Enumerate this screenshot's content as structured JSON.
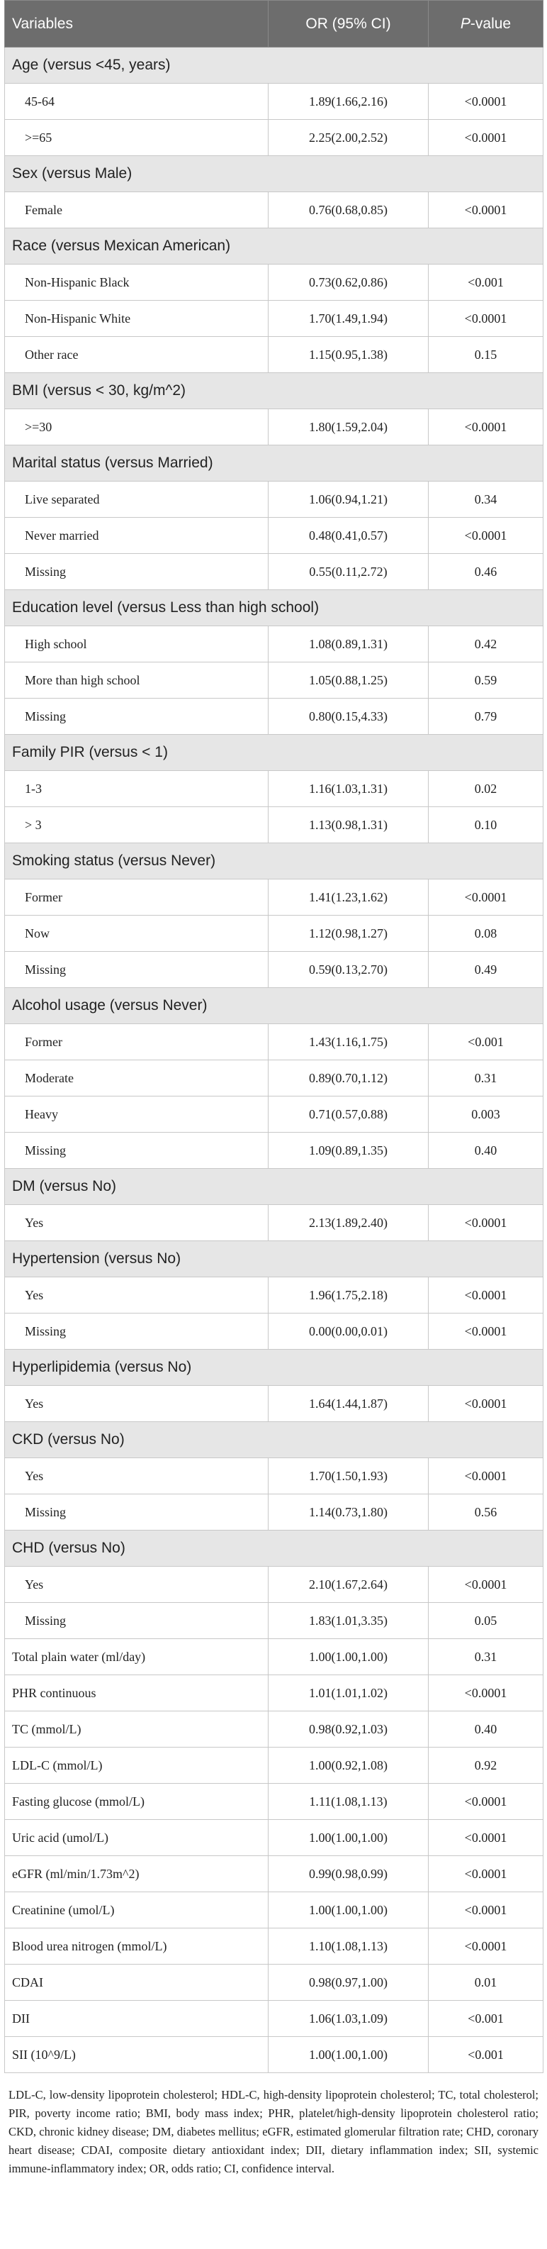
{
  "header": {
    "col_variables": "Variables",
    "col_or": "OR (95% CI)",
    "col_p_italic": "P",
    "col_p_rest": "-value"
  },
  "groups": [
    {
      "title": "Age (versus <45, years)",
      "rows": [
        {
          "label": "45-64",
          "or": "1.89(1.66,2.16)",
          "p": "<0.0001"
        },
        {
          "label": ">=65",
          "or": "2.25(2.00,2.52)",
          "p": "<0.0001"
        }
      ]
    },
    {
      "title": "Sex (versus Male)",
      "rows": [
        {
          "label": "Female",
          "or": "0.76(0.68,0.85)",
          "p": "<0.0001"
        }
      ]
    },
    {
      "title": "Race (versus Mexican American)",
      "rows": [
        {
          "label": "Non-Hispanic Black",
          "or": "0.73(0.62,0.86)",
          "p": "<0.001"
        },
        {
          "label": "Non-Hispanic White",
          "or": "1.70(1.49,1.94)",
          "p": "<0.0001"
        },
        {
          "label": "Other race",
          "or": "1.15(0.95,1.38)",
          "p": "0.15"
        }
      ]
    },
    {
      "title": "BMI (versus < 30, kg/m^2)",
      "rows": [
        {
          "label": ">=30",
          "or": "1.80(1.59,2.04)",
          "p": "<0.0001"
        }
      ]
    },
    {
      "title": "Marital status (versus Married)",
      "rows": [
        {
          "label": "Live separated",
          "or": "1.06(0.94,1.21)",
          "p": "0.34"
        },
        {
          "label": "Never married",
          "or": "0.48(0.41,0.57)",
          "p": "<0.0001"
        },
        {
          "label": "Missing",
          "or": "0.55(0.11,2.72)",
          "p": "0.46"
        }
      ]
    },
    {
      "title": "Education level (versus Less than high school)",
      "rows": [
        {
          "label": "High school",
          "or": "1.08(0.89,1.31)",
          "p": "0.42"
        },
        {
          "label": "More than high school",
          "or": "1.05(0.88,1.25)",
          "p": "0.59"
        },
        {
          "label": "Missing",
          "or": "0.80(0.15,4.33)",
          "p": "0.79"
        }
      ]
    },
    {
      "title": "Family PIR (versus < 1)",
      "rows": [
        {
          "label": "1-3",
          "or": "1.16(1.03,1.31)",
          "p": "0.02"
        },
        {
          "label": "> 3",
          "or": "1.13(0.98,1.31)",
          "p": "0.10"
        }
      ]
    },
    {
      "title": "Smoking status (versus Never)",
      "rows": [
        {
          "label": "Former",
          "or": "1.41(1.23,1.62)",
          "p": "<0.0001"
        },
        {
          "label": "Now",
          "or": "1.12(0.98,1.27)",
          "p": "0.08"
        },
        {
          "label": "Missing",
          "or": "0.59(0.13,2.70)",
          "p": "0.49"
        }
      ]
    },
    {
      "title": "Alcohol usage (versus Never)",
      "rows": [
        {
          "label": "Former",
          "or": "1.43(1.16,1.75)",
          "p": "<0.001"
        },
        {
          "label": "Moderate",
          "or": "0.89(0.70,1.12)",
          "p": "0.31"
        },
        {
          "label": "Heavy",
          "or": "0.71(0.57,0.88)",
          "p": "0.003"
        },
        {
          "label": "Missing",
          "or": "1.09(0.89,1.35)",
          "p": "0.40"
        }
      ]
    },
    {
      "title": "DM (versus No)",
      "rows": [
        {
          "label": "Yes",
          "or": "2.13(1.89,2.40)",
          "p": "<0.0001"
        }
      ]
    },
    {
      "title": "Hypertension (versus No)",
      "rows": [
        {
          "label": "Yes",
          "or": "1.96(1.75,2.18)",
          "p": "<0.0001"
        },
        {
          "label": "Missing",
          "or": "0.00(0.00,0.01)",
          "p": "<0.0001"
        }
      ]
    },
    {
      "title": "Hyperlipidemia (versus No)",
      "rows": [
        {
          "label": "Yes",
          "or": "1.64(1.44,1.87)",
          "p": "<0.0001"
        }
      ]
    },
    {
      "title": "CKD (versus No)",
      "rows": [
        {
          "label": "Yes",
          "or": "1.70(1.50,1.93)",
          "p": "<0.0001"
        },
        {
          "label": "Missing",
          "or": "1.14(0.73,1.80)",
          "p": "0.56"
        }
      ]
    },
    {
      "title": "CHD (versus No)",
      "rows": [
        {
          "label": "Yes",
          "or": "2.10(1.67,2.64)",
          "p": "<0.0001"
        },
        {
          "label": "Missing",
          "or": "1.83(1.01,3.35)",
          "p": "0.05"
        }
      ]
    }
  ],
  "continuous": [
    {
      "label": "Total plain water (ml/day)",
      "or": "1.00(1.00,1.00)",
      "p": "0.31"
    },
    {
      "label": "PHR continuous",
      "or": "1.01(1.01,1.02)",
      "p": "<0.0001"
    },
    {
      "label": "TC (mmol/L)",
      "or": "0.98(0.92,1.03)",
      "p": "0.40"
    },
    {
      "label": "LDL-C (mmol/L)",
      "or": "1.00(0.92,1.08)",
      "p": "0.92"
    },
    {
      "label": "Fasting glucose (mmol/L)",
      "or": "1.11(1.08,1.13)",
      "p": "<0.0001"
    },
    {
      "label": "Uric acid (umol/L)",
      "or": "1.00(1.00,1.00)",
      "p": "<0.0001"
    },
    {
      "label": "eGFR (ml/min/1.73m^2)",
      "or": "0.99(0.98,0.99)",
      "p": "<0.0001"
    },
    {
      "label": "Creatinine (umol/L)",
      "or": "1.00(1.00,1.00)",
      "p": "<0.0001"
    },
    {
      "label": "Blood urea nitrogen (mmol/L)",
      "or": "1.10(1.08,1.13)",
      "p": "<0.0001"
    },
    {
      "label": "CDAI",
      "or": "0.98(0.97,1.00)",
      "p": "0.01"
    },
    {
      "label": "DII",
      "or": "1.06(1.03,1.09)",
      "p": "<0.001"
    },
    {
      "label": "SII (10^9/L)",
      "or": "1.00(1.00,1.00)",
      "p": "<0.001"
    }
  ],
  "footnote": "LDL-C, low-density lipoprotein cholesterol; HDL-C, high-density lipoprotein cholesterol; TC, total cholesterol; PIR, poverty income ratio; BMI, body mass index; PHR, platelet/high-density lipoprotein cholesterol ratio; CKD, chronic kidney disease; DM, diabetes mellitus; eGFR, estimated glomerular filtration rate; CHD, coronary heart disease; CDAI, composite dietary antioxidant index; DII, dietary inflammation index; SII, systemic immune-inflammatory index; OR, odds ratio; CI, confidence interval."
}
